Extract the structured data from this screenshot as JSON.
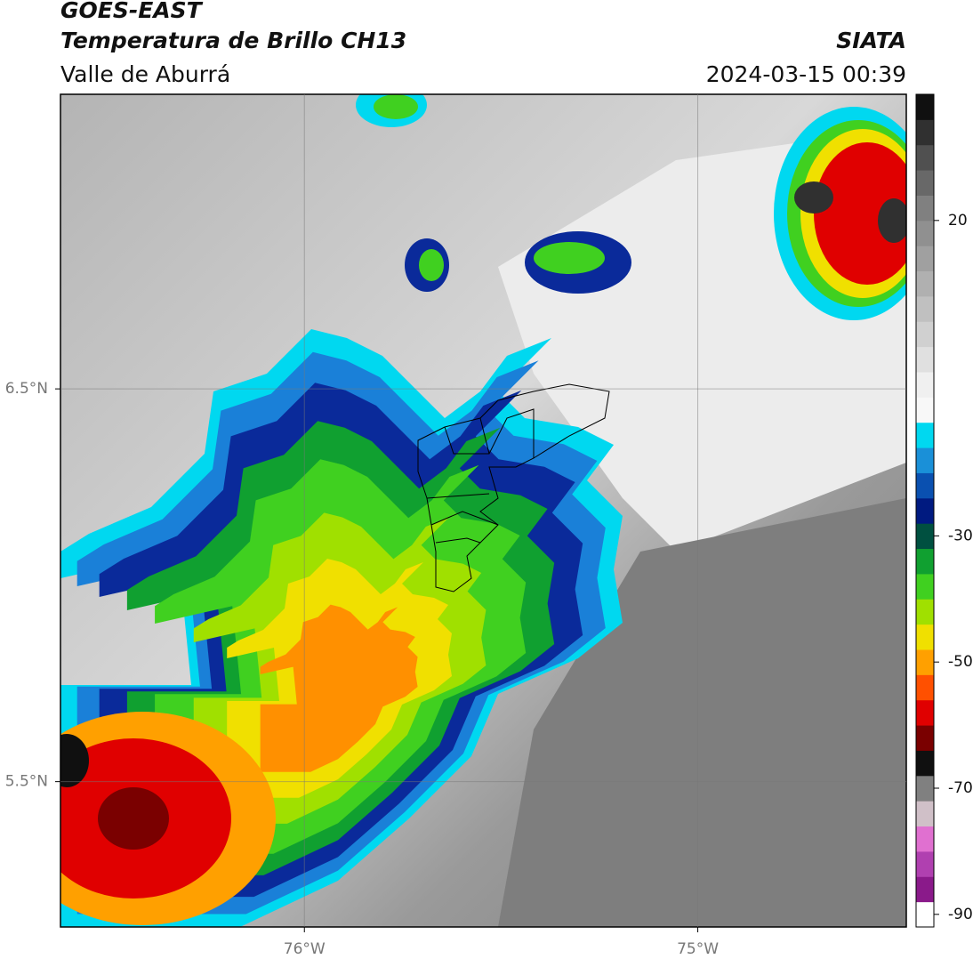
{
  "header": {
    "title": "GOES-EAST",
    "subtitle": "Temperatura de Brillo CH13",
    "region": "Valle de Aburrá",
    "source": "SIATA",
    "datetime": "2024-03-15 00:39"
  },
  "map": {
    "xlim": [
      -76.62,
      -74.47
    ],
    "ylim": [
      5.13,
      7.25
    ],
    "xticks": [
      {
        "value": -76,
        "label": "76°W"
      },
      {
        "value": -75,
        "label": "75°W"
      }
    ],
    "yticks": [
      {
        "value": 6.5,
        "label": "6.5°N"
      },
      {
        "value": 5.5,
        "label": "5.5°N"
      }
    ],
    "grid": true
  },
  "colorbar": {
    "lim": [
      -92,
      40
    ],
    "ticks": [
      20,
      -30,
      -50,
      -70,
      -90
    ],
    "colors": [
      "#ffffff",
      "#8a1a8a",
      "#b040b0",
      "#e070d0",
      "#d0c0c8",
      "#808080",
      "#101010",
      "#7a0000",
      "#e00000",
      "#ff5000",
      "#ffa000",
      "#f0e000",
      "#a0e000",
      "#40d020",
      "#10a030",
      "#005040",
      "#001a80",
      "#0a50b0",
      "#1a90d8",
      "#00d8f0",
      "#f8f8f8",
      "#f0f0f0",
      "#e0e0e0",
      "#d0d0d0",
      "#c0c0c0",
      "#b0b0b0",
      "#a0a0a0",
      "#909090",
      "#808080",
      "#686868",
      "#505050",
      "#303030",
      "#101010"
    ]
  }
}
